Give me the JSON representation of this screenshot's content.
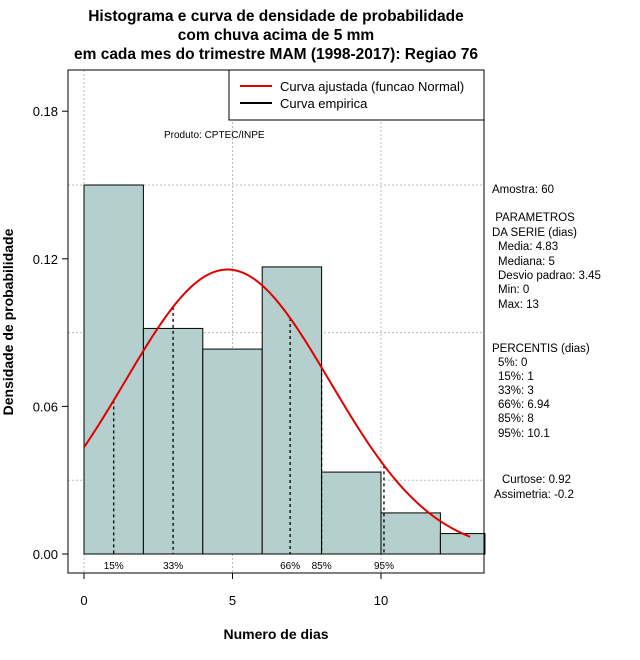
{
  "colors": {
    "bar_fill": "#b4cfcd",
    "bar_stroke": "#000000",
    "fit_curve": "#e00000",
    "grid": "#bbbbbb"
  },
  "chart_data": {
    "type": "bar",
    "title_lines": [
      "Histograma e curva de densidade de probabilidade",
      "com chuva acima de 5 mm",
      "em cada mes do trimestre MAM (1998-2017): Regiao 76"
    ],
    "xlabel": "Numero de dias",
    "ylabel": "Densidade de probabilidade",
    "xlim": [
      -0.5,
      13.5
    ],
    "ylim": [
      -0.005,
      0.19
    ],
    "xticks": [
      0,
      5,
      10
    ],
    "yticks": [
      0.0,
      0.06,
      0.12,
      0.18
    ],
    "ytick_labels": [
      "0.00",
      "0.06",
      "0.12",
      "0.18"
    ],
    "producer": "Produto: CPTEC/INPE",
    "histogram": {
      "bin_edges": [
        0,
        2,
        4,
        6,
        8,
        10,
        12,
        13.5
      ],
      "densities": [
        0.15,
        0.0917,
        0.0833,
        0.1167,
        0.0333,
        0.0167,
        0.0083
      ]
    },
    "fitted_normal": {
      "name": "Curva ajustada (funcao Normal)",
      "mean": 4.83,
      "sd": 3.45,
      "x_range": [
        0,
        13
      ]
    },
    "empirical_name": "Curva empirica",
    "percentile_markers": [
      {
        "label": "15%",
        "x": 1
      },
      {
        "label": "33%",
        "x": 3
      },
      {
        "label": "66%",
        "x": 6.94
      },
      {
        "label": "85%",
        "x": 8
      },
      {
        "label": "95%",
        "x": 10.1
      }
    ]
  },
  "stats_panel": {
    "sample": "Amostra: 60",
    "params_title_1": " PARAMETROS",
    "params_title_2": "DA SERIE (dias)",
    "params": [
      "Media: 4.83",
      "Mediana: 5",
      "Desvio padrao: 3.45",
      "Min: 0",
      "Max: 13"
    ],
    "percentis_title": "PERCENTIS (dias)",
    "percentis": [
      "5%: 0",
      "15%: 1",
      "33%: 3",
      "66%: 6.94",
      "85%: 8",
      "95%: 10.1"
    ],
    "curtose": "Curtose: 0.92",
    "assimetria": "Assimetria: -0.2"
  }
}
